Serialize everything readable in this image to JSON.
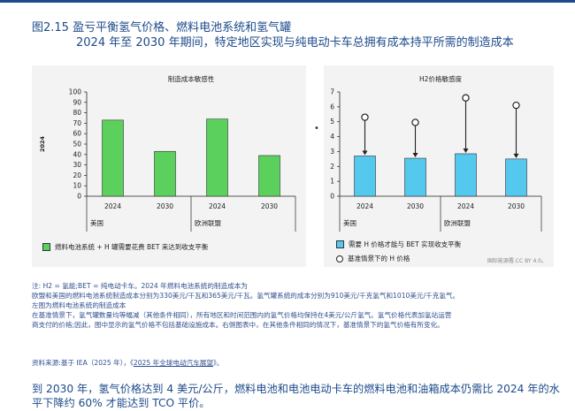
{
  "header": {
    "figure_title": "图2.15 盈亏平衡氢气价格、燃料电池系统和氢气罐",
    "subtitle": "2024 年至 2030 年期间，特定地区实现与纯电动卡车总拥有成本持平所需的制造成本"
  },
  "chart_data": [
    {
      "type": "bar",
      "title": "制造成本敏感性",
      "ylabel": "2024",
      "categories": [
        "2024",
        "2030",
        "2024",
        "2030"
      ],
      "groups": [
        "美国",
        "欧洲联盟"
      ],
      "values": [
        73,
        43,
        74,
        39
      ],
      "ylim": [
        0,
        100
      ],
      "yticks": [
        0,
        10,
        20,
        30,
        40,
        50,
        60,
        70,
        80,
        90,
        100
      ],
      "colors": {
        "bar": "#5cd05c"
      },
      "legend": "燃料电池系统 + H 罐需要花费 BET 来达到收支平衡",
      "grid": false
    },
    {
      "type": "bar",
      "title": "H2价格敏感度",
      "categories": [
        "2024",
        "2030",
        "2024",
        "2030"
      ],
      "groups": [
        "美国",
        "欧洲联盟"
      ],
      "series": [
        {
          "name": "需要 H 价格才能与 BET 实现收支平衡",
          "values": [
            2.7,
            2.55,
            2.85,
            2.5
          ]
        },
        {
          "name": "基准情景下的 H 价格",
          "values": [
            5.3,
            4.95,
            6.6,
            6.1
          ]
        }
      ],
      "ylim": [
        0,
        7
      ],
      "yticks": [
        0,
        1,
        2,
        3,
        4,
        5,
        6,
        7
      ],
      "colors": {
        "bar": "#55c8ee",
        "marker": "#ffffff"
      },
      "grid": false
    }
  ],
  "legend_right": {
    "bar_label": "需要 H 价格才能与 BET 实现收支平衡",
    "marker_label": "基准情景下的 H 价格"
  },
  "credit": "国际能源署.CC BY 4.0。",
  "notes": [
    "注:  H2 = 氢能;BET = 纯电动卡车。2024 年燃料电池系统的制造成本为",
    "欧盟和美国的燃料电池系统制造成本分别为330美元/千瓦和365美元/千瓦。氢气罐系统的成本分别为910美元/千克氢气和1010美元/千克氢气。",
    "左图为燃料电池系统的制造成本",
    "在基准情景下，氢气罐数量均等幅减（其他条件相同），所有地区和时间范围内的氢气价格均保持在4美元/公斤氢气。氢气价格代表加氢站运营",
    "商支付的价格;因此，图中显示的氢气价格不包括基础设施成本。右侧图表中，在其他条件相同的情况下，基准情景下的氢气价格有所变化。"
  ],
  "source": {
    "prefix": "资料来源:基于 IEA（2025 年），《",
    "link": "2025 年全球电动汽车展望",
    "suffix": "》。"
  },
  "summary": "到 2030 年，氢气价格达到 4 美元/公斤，燃料电池和电池电动卡车的燃料电池和油箱成本仍需比 2024 年的水平下降约 60% 才能达到 TCO 平价。",
  "misc": {
    "dot": "•"
  }
}
